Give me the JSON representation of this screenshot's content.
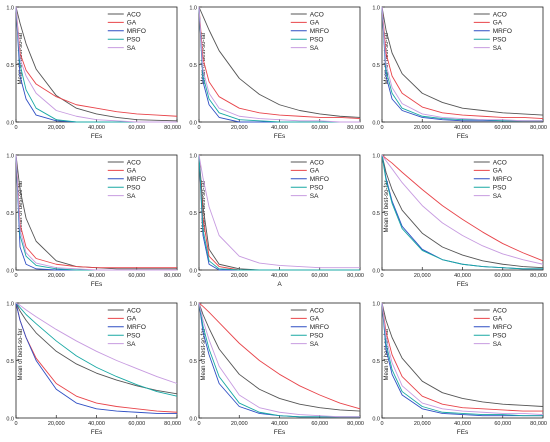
{
  "figure": {
    "series_names": [
      "ACO",
      "GA",
      "MRFO",
      "PSO",
      "SA"
    ],
    "colors": {
      "ACO": "#555555",
      "GA": "#e8444a",
      "MRFO": "#2f4fc4",
      "PSO": "#18a8a4",
      "SA": "#c79be0"
    }
  },
  "chart_data": [
    {
      "type": "line",
      "xlabel": "FEs",
      "ylabel": "Mean of best-so-far",
      "xlim": [
        0,
        80000
      ],
      "ylim": [
        0,
        1
      ],
      "xticks": [
        "0",
        "20,000",
        "40,000",
        "60,000",
        "80,000"
      ],
      "yticks": [
        "0.0",
        "0.5",
        "1.0"
      ],
      "legend": "top-right",
      "x": [
        0,
        2000,
        5000,
        10000,
        20000,
        30000,
        40000,
        50000,
        60000,
        70000,
        80000
      ],
      "series": [
        {
          "name": "ACO",
          "values": [
            1.0,
            0.86,
            0.68,
            0.46,
            0.23,
            0.12,
            0.07,
            0.04,
            0.02,
            0.015,
            0.01
          ]
        },
        {
          "name": "GA",
          "values": [
            1.0,
            0.6,
            0.45,
            0.33,
            0.22,
            0.15,
            0.12,
            0.09,
            0.07,
            0.06,
            0.05
          ]
        },
        {
          "name": "MRFO",
          "values": [
            1.0,
            0.4,
            0.2,
            0.06,
            0.01,
            0.0,
            0.0,
            0.0,
            0.0,
            0.0,
            0.0
          ]
        },
        {
          "name": "PSO",
          "values": [
            1.0,
            0.5,
            0.28,
            0.12,
            0.02,
            0.0,
            0.0,
            0.0,
            0.0,
            0.0,
            0.0
          ]
        },
        {
          "name": "SA",
          "values": [
            1.0,
            0.55,
            0.4,
            0.25,
            0.1,
            0.05,
            0.02,
            0.01,
            0.0,
            0.0,
            0.0
          ]
        }
      ]
    },
    {
      "type": "line",
      "xlabel": "FEs",
      "ylabel": "Mean of best-so-far",
      "xlim": [
        0,
        80000
      ],
      "ylim": [
        0,
        1
      ],
      "xticks": [
        "0",
        "20,000",
        "40,000",
        "60,000",
        "80,000"
      ],
      "yticks": [
        "0.0",
        "0.5",
        "1.0"
      ],
      "legend": "top-right",
      "x": [
        0,
        2000,
        5000,
        10000,
        20000,
        30000,
        40000,
        50000,
        60000,
        70000,
        80000
      ],
      "series": [
        {
          "name": "ACO",
          "values": [
            1.0,
            0.92,
            0.8,
            0.62,
            0.38,
            0.24,
            0.15,
            0.1,
            0.07,
            0.05,
            0.04
          ]
        },
        {
          "name": "GA",
          "values": [
            1.0,
            0.55,
            0.35,
            0.22,
            0.12,
            0.08,
            0.06,
            0.05,
            0.04,
            0.04,
            0.03
          ]
        },
        {
          "name": "MRFO",
          "values": [
            1.0,
            0.35,
            0.15,
            0.04,
            0.0,
            0.0,
            0.0,
            0.0,
            0.0,
            0.0,
            0.0
          ]
        },
        {
          "name": "PSO",
          "values": [
            1.0,
            0.4,
            0.2,
            0.08,
            0.02,
            0.01,
            0.0,
            0.0,
            0.0,
            0.0,
            0.0
          ]
        },
        {
          "name": "SA",
          "values": [
            1.0,
            0.45,
            0.25,
            0.12,
            0.05,
            0.03,
            0.02,
            0.01,
            0.01,
            0.0,
            0.0
          ]
        }
      ]
    },
    {
      "type": "line",
      "xlabel": "FEs",
      "ylabel": "Mean of best-so-far",
      "xlim": [
        0,
        80000
      ],
      "ylim": [
        0,
        1
      ],
      "xticks": [
        "0",
        "20,000",
        "40,000",
        "60,000",
        "80,000"
      ],
      "yticks": [
        "0.0",
        "0.5",
        "1.0"
      ],
      "legend": "top-right",
      "x": [
        0,
        2000,
        5000,
        10000,
        20000,
        30000,
        40000,
        50000,
        60000,
        70000,
        80000
      ],
      "series": [
        {
          "name": "ACO",
          "values": [
            1.0,
            0.8,
            0.6,
            0.42,
            0.25,
            0.17,
            0.12,
            0.1,
            0.08,
            0.07,
            0.06
          ]
        },
        {
          "name": "GA",
          "values": [
            1.0,
            0.6,
            0.4,
            0.25,
            0.13,
            0.08,
            0.06,
            0.05,
            0.04,
            0.04,
            0.03
          ]
        },
        {
          "name": "MRFO",
          "values": [
            1.0,
            0.4,
            0.2,
            0.1,
            0.04,
            0.02,
            0.01,
            0.01,
            0.01,
            0.01,
            0.01
          ]
        },
        {
          "name": "PSO",
          "values": [
            1.0,
            0.45,
            0.25,
            0.12,
            0.05,
            0.03,
            0.02,
            0.02,
            0.01,
            0.01,
            0.01
          ]
        },
        {
          "name": "SA",
          "values": [
            1.0,
            0.5,
            0.3,
            0.16,
            0.07,
            0.04,
            0.03,
            0.02,
            0.02,
            0.01,
            0.01
          ]
        }
      ]
    },
    {
      "type": "line",
      "xlabel": "FEs",
      "ylabel": "Mean of best-so-far",
      "xlim": [
        0,
        80000
      ],
      "ylim": [
        0,
        1
      ],
      "xticks": [
        "0",
        "20,000",
        "40,000",
        "60,000",
        "80,000"
      ],
      "yticks": [
        "0.0",
        "0.5",
        "1.0"
      ],
      "legend": "top-right",
      "x": [
        0,
        2000,
        5000,
        10000,
        20000,
        30000,
        40000,
        50000,
        60000,
        70000,
        80000
      ],
      "series": [
        {
          "name": "ACO",
          "values": [
            1.0,
            0.7,
            0.45,
            0.25,
            0.08,
            0.03,
            0.02,
            0.01,
            0.01,
            0.01,
            0.01
          ]
        },
        {
          "name": "GA",
          "values": [
            1.0,
            0.4,
            0.2,
            0.1,
            0.05,
            0.03,
            0.02,
            0.02,
            0.02,
            0.02,
            0.02
          ]
        },
        {
          "name": "MRFO",
          "values": [
            1.0,
            0.2,
            0.05,
            0.01,
            0.0,
            0.0,
            0.0,
            0.0,
            0.0,
            0.0,
            0.0
          ]
        },
        {
          "name": "PSO",
          "values": [
            1.0,
            0.3,
            0.12,
            0.04,
            0.01,
            0.0,
            0.0,
            0.0,
            0.0,
            0.0,
            0.0
          ]
        },
        {
          "name": "SA",
          "values": [
            1.0,
            0.35,
            0.15,
            0.06,
            0.02,
            0.01,
            0.0,
            0.0,
            0.0,
            0.0,
            0.0
          ]
        }
      ]
    },
    {
      "type": "line",
      "xlabel": "A",
      "ylabel": "Mean of best-so-far",
      "xlim": [
        0,
        80000
      ],
      "ylim": [
        0,
        1
      ],
      "xticks": [
        "0",
        "20,000",
        "40,000",
        "60,000",
        "80,000"
      ],
      "yticks": [
        "0.0",
        "0.5",
        "1.0"
      ],
      "legend": "top-right",
      "x": [
        0,
        2000,
        5000,
        10000,
        20000,
        30000,
        40000,
        50000,
        60000,
        70000,
        80000
      ],
      "series": [
        {
          "name": "ACO",
          "values": [
            1.0,
            0.55,
            0.18,
            0.05,
            0.01,
            0.0,
            0.0,
            0.0,
            0.0,
            0.0,
            0.0
          ]
        },
        {
          "name": "GA",
          "values": [
            1.0,
            0.45,
            0.12,
            0.03,
            0.0,
            0.0,
            0.0,
            0.0,
            0.0,
            0.0,
            0.0
          ]
        },
        {
          "name": "MRFO",
          "values": [
            1.0,
            0.3,
            0.05,
            0.0,
            0.0,
            0.0,
            0.0,
            0.0,
            0.0,
            0.0,
            0.0
          ]
        },
        {
          "name": "PSO",
          "values": [
            1.0,
            0.35,
            0.08,
            0.01,
            0.0,
            0.0,
            0.0,
            0.0,
            0.0,
            0.0,
            0.0
          ]
        },
        {
          "name": "SA",
          "values": [
            1.0,
            0.8,
            0.55,
            0.3,
            0.12,
            0.06,
            0.04,
            0.03,
            0.02,
            0.02,
            0.02
          ]
        }
      ]
    },
    {
      "type": "line",
      "xlabel": "FEs",
      "ylabel": "Mean of best-so-far",
      "xlim": [
        0,
        80000
      ],
      "ylim": [
        0,
        1
      ],
      "xticks": [
        "0",
        "20,000",
        "40,000",
        "60,000",
        "80,000"
      ],
      "yticks": [
        "0.0",
        "0.5",
        "1.0"
      ],
      "legend": "top-right",
      "x": [
        0,
        2000,
        5000,
        10000,
        20000,
        30000,
        40000,
        50000,
        60000,
        70000,
        80000
      ],
      "series": [
        {
          "name": "ACO",
          "values": [
            1.0,
            0.85,
            0.7,
            0.52,
            0.32,
            0.2,
            0.13,
            0.08,
            0.05,
            0.03,
            0.02
          ]
        },
        {
          "name": "GA",
          "values": [
            1.0,
            0.97,
            0.93,
            0.85,
            0.7,
            0.56,
            0.44,
            0.33,
            0.23,
            0.15,
            0.08
          ]
        },
        {
          "name": "MRFO",
          "values": [
            1.0,
            0.8,
            0.6,
            0.38,
            0.18,
            0.09,
            0.05,
            0.03,
            0.02,
            0.01,
            0.01
          ]
        },
        {
          "name": "PSO",
          "values": [
            1.0,
            0.78,
            0.58,
            0.36,
            0.17,
            0.09,
            0.05,
            0.03,
            0.02,
            0.01,
            0.01
          ]
        },
        {
          "name": "SA",
          "values": [
            1.0,
            0.95,
            0.88,
            0.76,
            0.56,
            0.41,
            0.3,
            0.21,
            0.14,
            0.09,
            0.05
          ]
        }
      ]
    },
    {
      "type": "line",
      "xlabel": "FEs",
      "ylabel": "Mean of best-so-far",
      "xlim": [
        0,
        80000
      ],
      "ylim": [
        0,
        1
      ],
      "xticks": [
        "0",
        "20,000",
        "40,000",
        "60,000",
        "80,000"
      ],
      "yticks": [
        "0.0",
        "0.5",
        "1.0"
      ],
      "legend": "top-right",
      "x": [
        0,
        2000,
        5000,
        10000,
        20000,
        30000,
        40000,
        50000,
        60000,
        70000,
        80000
      ],
      "series": [
        {
          "name": "ACO",
          "values": [
            1.0,
            0.93,
            0.85,
            0.74,
            0.58,
            0.47,
            0.39,
            0.33,
            0.28,
            0.24,
            0.21
          ]
        },
        {
          "name": "GA",
          "values": [
            1.0,
            0.85,
            0.7,
            0.52,
            0.3,
            0.19,
            0.13,
            0.1,
            0.08,
            0.06,
            0.05
          ]
        },
        {
          "name": "MRFO",
          "values": [
            1.0,
            0.85,
            0.7,
            0.5,
            0.25,
            0.13,
            0.08,
            0.06,
            0.05,
            0.04,
            0.04
          ]
        },
        {
          "name": "PSO",
          "values": [
            1.0,
            0.96,
            0.9,
            0.82,
            0.67,
            0.54,
            0.44,
            0.36,
            0.29,
            0.23,
            0.19
          ]
        },
        {
          "name": "SA",
          "values": [
            1.0,
            0.98,
            0.94,
            0.88,
            0.77,
            0.67,
            0.58,
            0.5,
            0.43,
            0.36,
            0.3
          ]
        }
      ]
    },
    {
      "type": "line",
      "xlabel": "FEs",
      "ylabel": "Mean of best-so-far",
      "xlim": [
        0,
        80000
      ],
      "ylim": [
        0,
        1
      ],
      "xticks": [
        "0",
        "20,000",
        "40,000",
        "60,000",
        "80,000"
      ],
      "yticks": [
        "0.0",
        "0.5",
        "1.0"
      ],
      "legend": "top-right",
      "x": [
        0,
        2000,
        5000,
        10000,
        20000,
        30000,
        40000,
        50000,
        60000,
        70000,
        80000
      ],
      "series": [
        {
          "name": "ACO",
          "values": [
            1.0,
            0.9,
            0.78,
            0.6,
            0.38,
            0.25,
            0.17,
            0.12,
            0.09,
            0.07,
            0.06
          ]
        },
        {
          "name": "GA",
          "values": [
            1.0,
            0.97,
            0.92,
            0.83,
            0.65,
            0.5,
            0.38,
            0.28,
            0.2,
            0.13,
            0.08
          ]
        },
        {
          "name": "MRFO",
          "values": [
            1.0,
            0.75,
            0.55,
            0.3,
            0.1,
            0.04,
            0.02,
            0.01,
            0.01,
            0.01,
            0.01
          ]
        },
        {
          "name": "PSO",
          "values": [
            1.0,
            0.8,
            0.6,
            0.36,
            0.13,
            0.05,
            0.02,
            0.01,
            0.01,
            0.01,
            0.01
          ]
        },
        {
          "name": "SA",
          "values": [
            1.0,
            0.85,
            0.68,
            0.45,
            0.2,
            0.09,
            0.05,
            0.03,
            0.02,
            0.01,
            0.01
          ]
        }
      ]
    },
    {
      "type": "line",
      "xlabel": "FEs",
      "ylabel": "Mean of best-so-far",
      "xlim": [
        0,
        80000
      ],
      "ylim": [
        0,
        1
      ],
      "xticks": [
        "0",
        "20,000",
        "40,000",
        "60,000",
        "80,000"
      ],
      "yticks": [
        "0.0",
        "0.5",
        "1.0"
      ],
      "legend": "top-right",
      "x": [
        0,
        2000,
        5000,
        10000,
        20000,
        30000,
        40000,
        50000,
        60000,
        70000,
        80000
      ],
      "series": [
        {
          "name": "ACO",
          "values": [
            1.0,
            0.85,
            0.7,
            0.52,
            0.32,
            0.22,
            0.17,
            0.14,
            0.12,
            0.11,
            0.1
          ]
        },
        {
          "name": "GA",
          "values": [
            1.0,
            0.75,
            0.55,
            0.36,
            0.19,
            0.12,
            0.09,
            0.08,
            0.07,
            0.06,
            0.06
          ]
        },
        {
          "name": "MRFO",
          "values": [
            1.0,
            0.6,
            0.38,
            0.2,
            0.08,
            0.04,
            0.03,
            0.02,
            0.02,
            0.02,
            0.02
          ]
        },
        {
          "name": "PSO",
          "values": [
            1.0,
            0.65,
            0.42,
            0.23,
            0.1,
            0.05,
            0.04,
            0.03,
            0.03,
            0.02,
            0.02
          ]
        },
        {
          "name": "SA",
          "values": [
            1.0,
            0.7,
            0.48,
            0.28,
            0.13,
            0.08,
            0.06,
            0.05,
            0.04,
            0.04,
            0.03
          ]
        }
      ]
    }
  ]
}
